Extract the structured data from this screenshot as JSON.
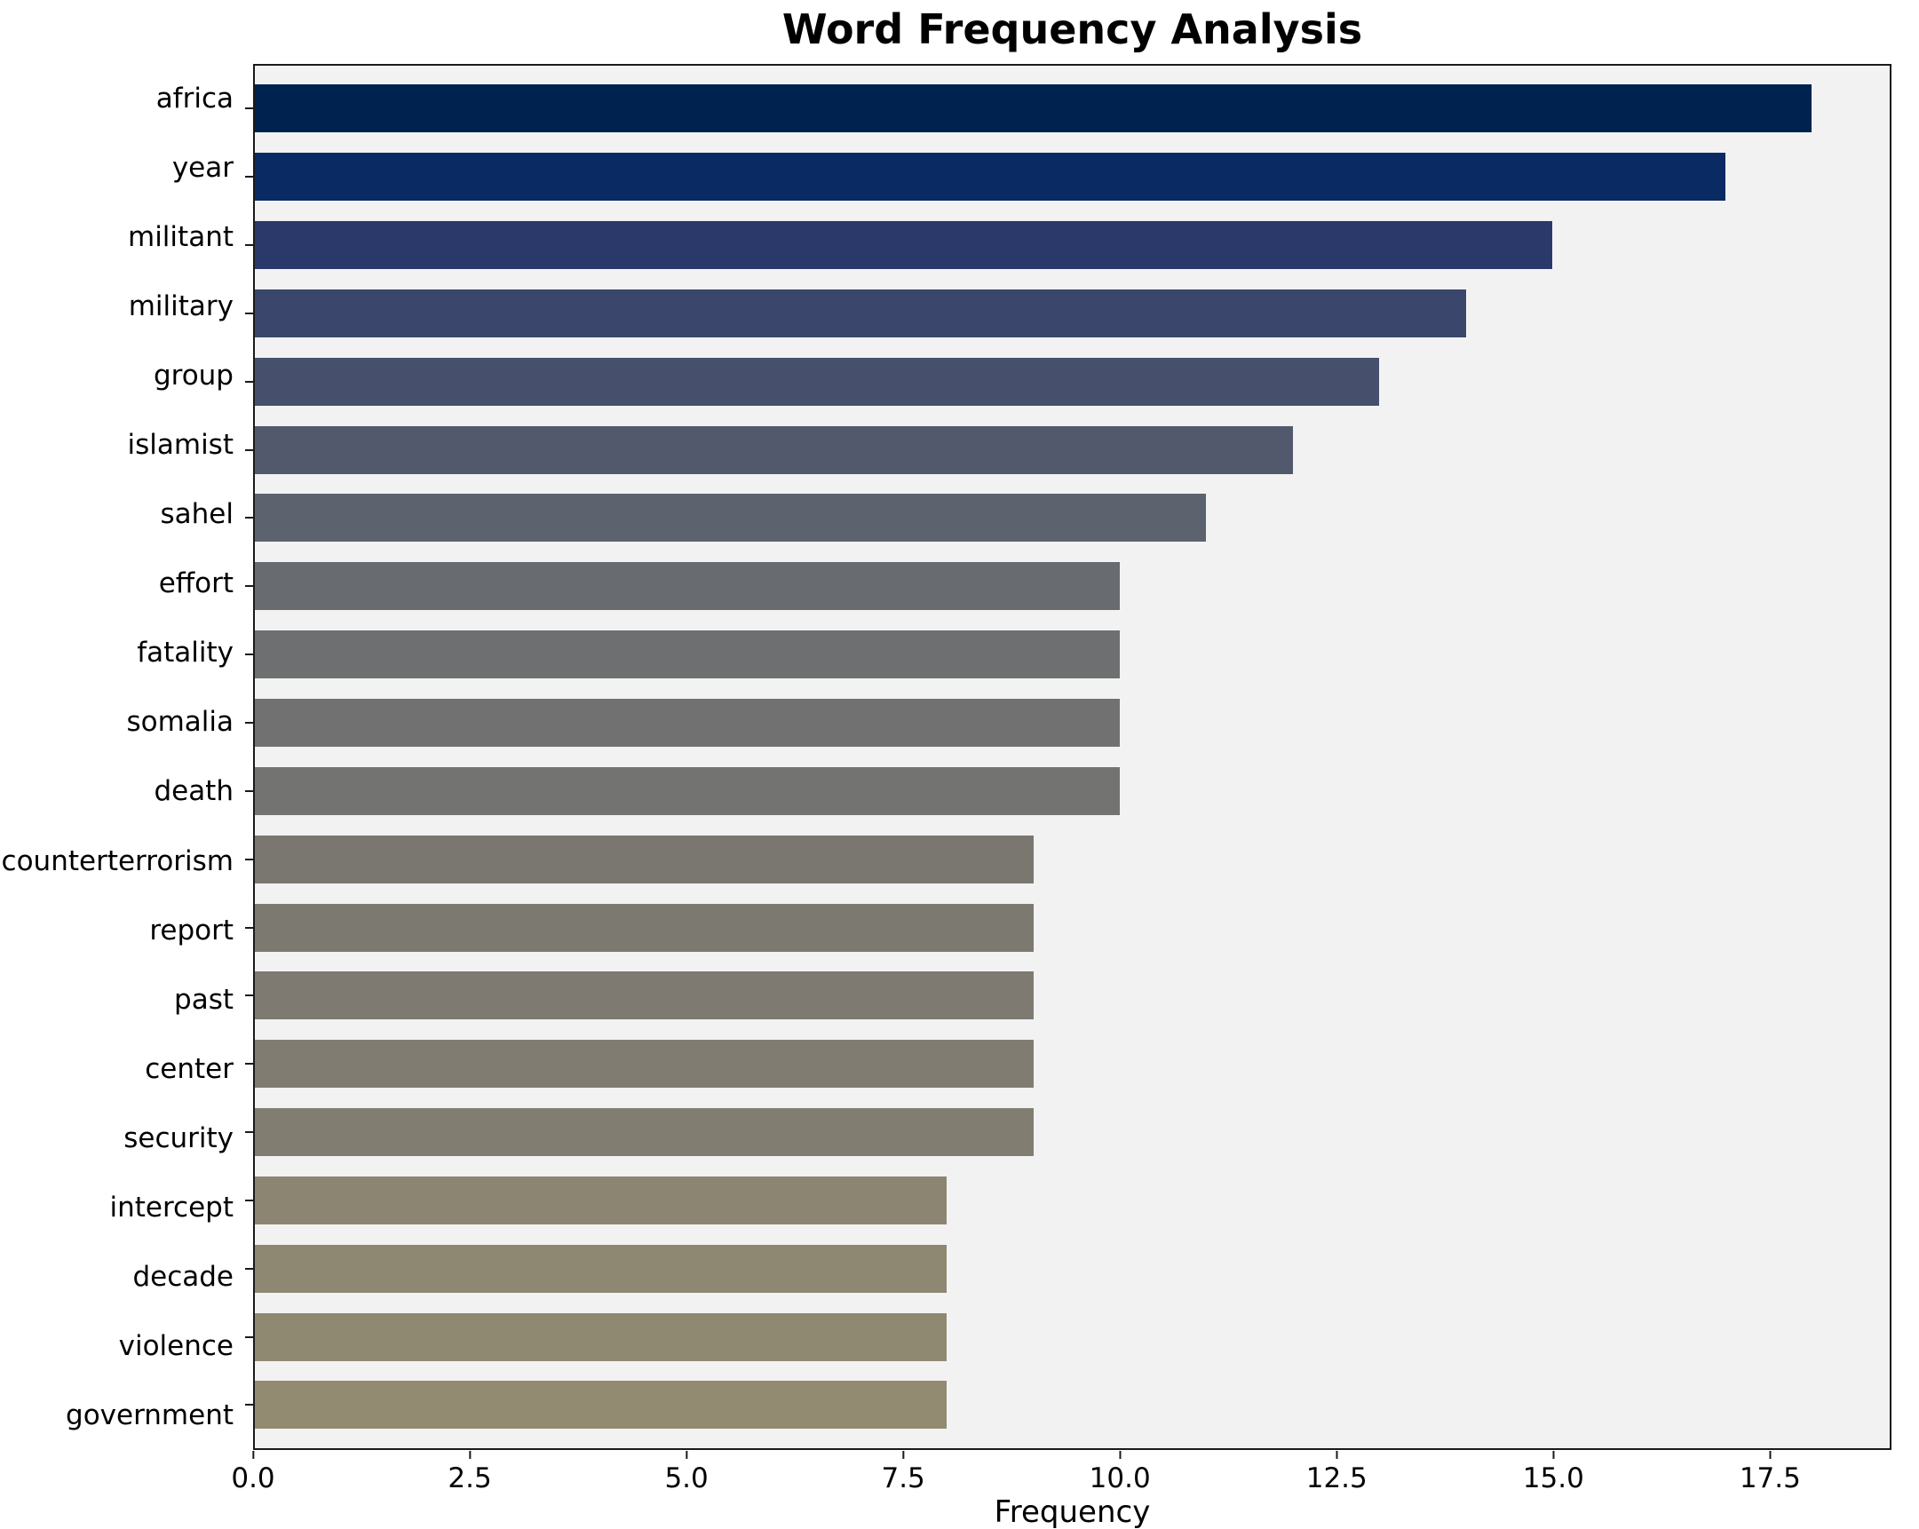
{
  "chart_data": {
    "type": "bar",
    "orientation": "horizontal",
    "title": "Word Frequency Analysis",
    "xlabel": "Frequency",
    "ylabel": "",
    "xlim": [
      0,
      18.9
    ],
    "grid": false,
    "legend": false,
    "plot_background": "#f2f2f2",
    "x_ticks": [
      "0.0",
      "2.5",
      "5.0",
      "7.5",
      "10.0",
      "12.5",
      "15.0",
      "17.5"
    ],
    "categories": [
      "africa",
      "year",
      "militant",
      "military",
      "group",
      "islamist",
      "sahel",
      "effort",
      "fatality",
      "somalia",
      "death",
      "counterterrorism",
      "report",
      "past",
      "center",
      "security",
      "intercept",
      "decade",
      "violence",
      "government"
    ],
    "values": [
      18,
      17,
      15,
      14,
      13,
      12,
      11,
      10,
      10,
      10,
      10,
      9,
      9,
      9,
      9,
      9,
      8,
      8,
      8,
      8
    ],
    "bar_colors": [
      "#00224e",
      "#0a2a63",
      "#2b396a",
      "#3a466c",
      "#46506d",
      "#52596d",
      "#5d636e",
      "#686b6f",
      "#6d6f70",
      "#707170",
      "#737372",
      "#7a7771",
      "#7c7971",
      "#7e7a71",
      "#807c71",
      "#827d71",
      "#8c8572",
      "#8e8772",
      "#908972",
      "#928b71"
    ]
  }
}
